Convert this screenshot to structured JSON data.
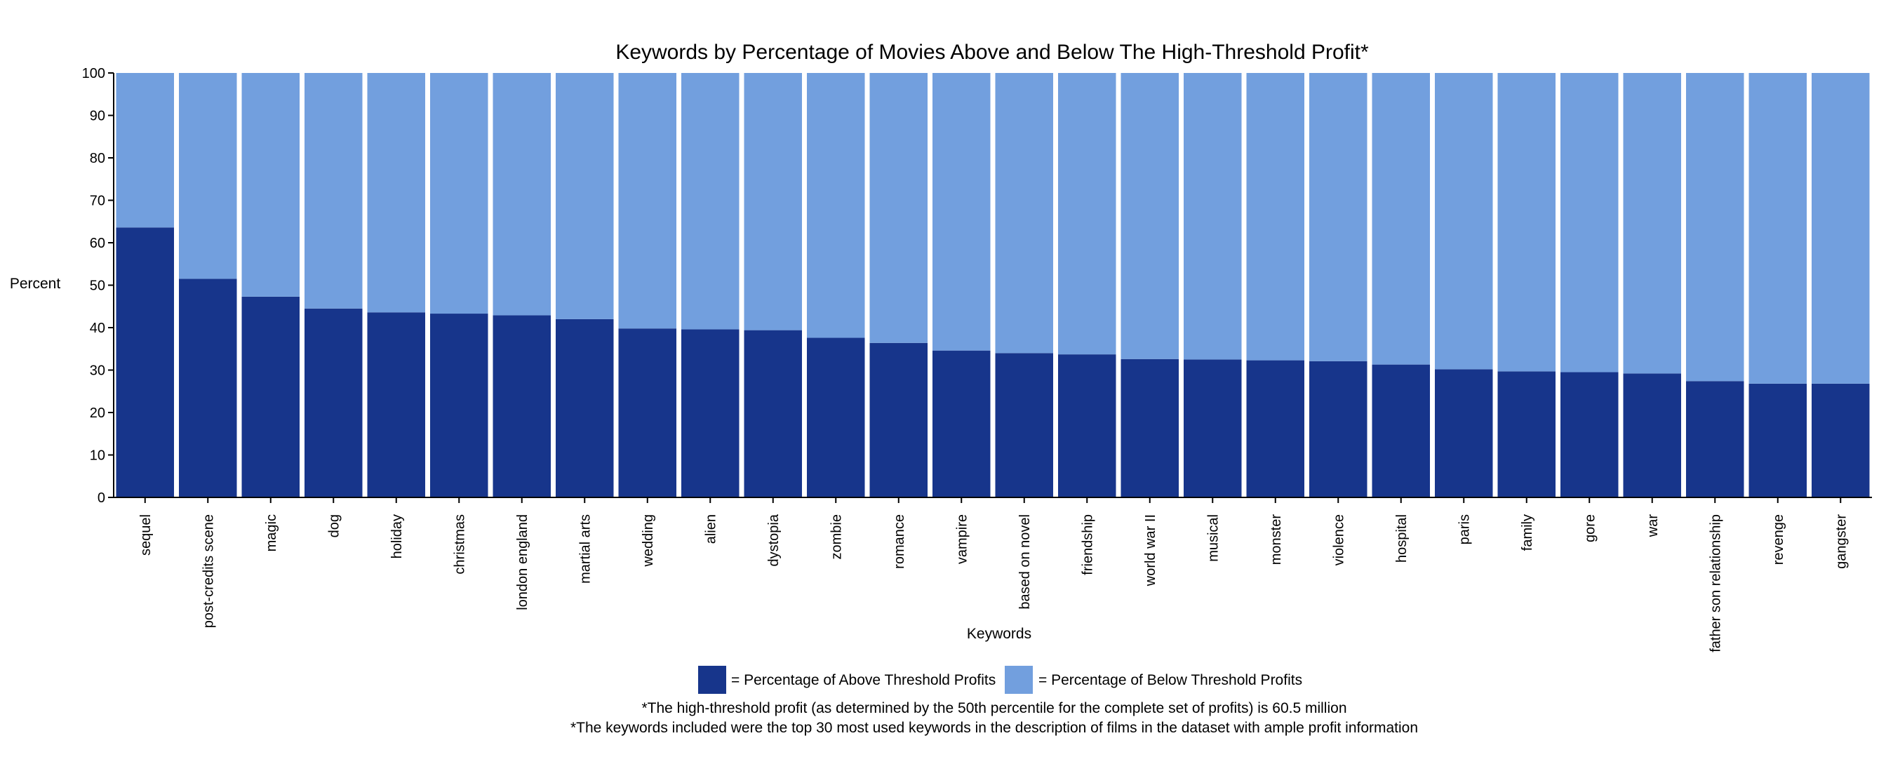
{
  "chart_data": {
    "type": "bar",
    "stacked": true,
    "title": "Keywords by Percentage of Movies Above and Below The High-Threshold Profit*",
    "xlabel": "Keywords",
    "ylabel": "Percent",
    "ylim": [
      0,
      100
    ],
    "yticks": [
      "0",
      "10",
      "20",
      "30",
      "40",
      "50",
      "60",
      "70",
      "80",
      "90",
      "100"
    ],
    "grid": false,
    "legend_position": "bottom",
    "categories": [
      "sequel",
      "post-credits scene",
      "magic",
      "dog",
      "holiday",
      "christmas",
      "london england",
      "martial arts",
      "wedding",
      "alien",
      "dystopia",
      "zombie",
      "romance",
      "vampire",
      "based on novel",
      "friendship",
      "world war II",
      "musical",
      "monster",
      "violence",
      "hospital",
      "paris",
      "family",
      "gore",
      "war",
      "father son relationship",
      "revenge",
      "gangster"
    ],
    "series": [
      {
        "name": "= Percentage of Above Threshold Profits",
        "color": "#17358b",
        "values": [
          63.6,
          51.5,
          47.3,
          44.5,
          43.6,
          43.3,
          42.9,
          42.0,
          39.8,
          39.6,
          39.4,
          37.6,
          36.4,
          34.6,
          34.0,
          33.7,
          32.6,
          32.5,
          32.3,
          32.1,
          31.3,
          30.2,
          29.7,
          29.5,
          29.2,
          27.4,
          26.8,
          26.8
        ]
      },
      {
        "name": "= Percentage of Below Threshold Profits",
        "color": "#729fde",
        "values": [
          36.4,
          48.5,
          52.7,
          55.5,
          56.4,
          56.7,
          57.1,
          58.0,
          60.2,
          60.4,
          60.6,
          62.4,
          63.6,
          65.4,
          66.0,
          66.3,
          67.4,
          67.5,
          67.7,
          67.9,
          68.7,
          69.8,
          70.3,
          70.5,
          70.8,
          72.6,
          73.2,
          73.2
        ]
      }
    ],
    "footnotes": [
      "*The high-threshold profit (as determined by the 50th percentile for the complete set of profits) is 60.5 million",
      "*The keywords included were the top 30 most used keywords in the description of films in the dataset with ample profit information"
    ]
  }
}
